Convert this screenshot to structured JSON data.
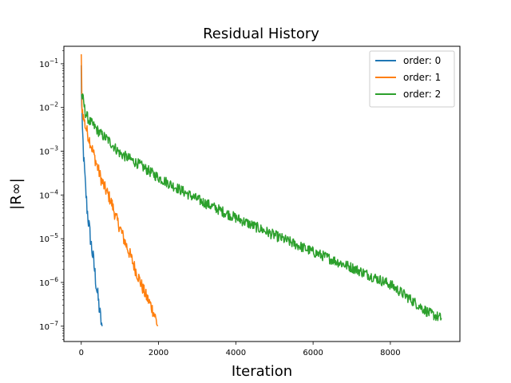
{
  "chart_data": {
    "type": "line",
    "title": "Residual History",
    "xlabel": "Iteration",
    "ylabel": "|R∞|",
    "yscale": "log",
    "xlim": [
      -450,
      9800
    ],
    "ylim_log10": [
      -7.35,
      -0.6
    ],
    "xticks": [
      0,
      2000,
      4000,
      6000,
      8000
    ],
    "xtick_labels": [
      "0",
      "2000",
      "4000",
      "6000",
      "8000"
    ],
    "yticks_exp": [
      -1,
      -2,
      -3,
      -4,
      -5,
      -6,
      -7
    ],
    "ytick_labels": [
      {
        "base": "10",
        "exp": "−1"
      },
      {
        "base": "10",
        "exp": "−2"
      },
      {
        "base": "10",
        "exp": "−3"
      },
      {
        "base": "10",
        "exp": "−4"
      },
      {
        "base": "10",
        "exp": "−5"
      },
      {
        "base": "10",
        "exp": "−6"
      },
      {
        "base": "10",
        "exp": "−7"
      }
    ],
    "grid": false,
    "legend_position": "top-right",
    "series": [
      {
        "name": "order: 0",
        "color": "#1f77b4",
        "x": [
          0,
          10,
          30,
          60,
          100,
          150,
          200,
          260,
          320,
          380,
          440,
          500,
          540
        ],
        "y": [
          0.08,
          0.01,
          0.003,
          0.0008,
          0.0002,
          5e-05,
          2e-05,
          7e-06,
          3e-06,
          1e-06,
          4e-07,
          1.5e-07,
          1e-07
        ],
        "noise": 0.2
      },
      {
        "name": "order: 1",
        "color": "#ff7f0e",
        "x": [
          0,
          20,
          60,
          100,
          200,
          300,
          400,
          500,
          600,
          700,
          800,
          900,
          1000,
          1100,
          1200,
          1300,
          1400,
          1500,
          1600,
          1700,
          1800,
          1900,
          1980
        ],
        "y": [
          0.13,
          0.01,
          0.006,
          0.004,
          0.002,
          0.001,
          0.0005,
          0.00025,
          0.00015,
          0.0001,
          6e-05,
          3e-05,
          1.8e-05,
          1e-05,
          6e-06,
          3.5e-06,
          2e-06,
          1.2e-06,
          7e-07,
          4.5e-07,
          3e-07,
          1.8e-07,
          1e-07
        ],
        "noise": 0.15
      },
      {
        "name": "order: 2",
        "color": "#2ca02c",
        "x": [
          0,
          50,
          100,
          200,
          300,
          500,
          700,
          1000,
          1500,
          2000,
          3000,
          4000,
          5000,
          6000,
          7000,
          8000,
          9000,
          9330
        ],
        "y": [
          0.02,
          0.015,
          0.008,
          0.005,
          0.004,
          0.0025,
          0.0018,
          0.0009,
          0.0005,
          0.00025,
          8e-05,
          3e-05,
          1.2e-05,
          5e-06,
          2.2e-06,
          9e-07,
          2e-07,
          1.5e-07
        ],
        "noise": 0.12
      }
    ]
  }
}
